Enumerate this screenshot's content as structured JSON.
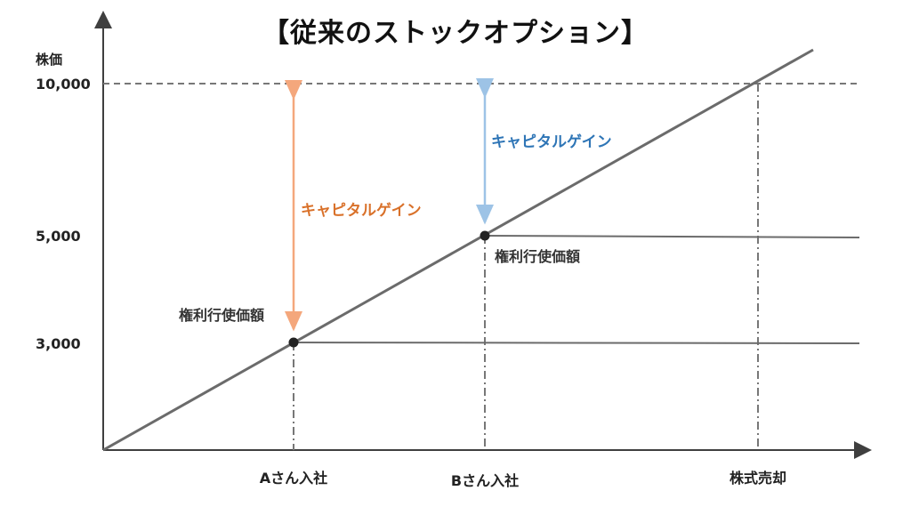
{
  "title": "【従来のストックオプション】",
  "y_axis": {
    "label": "株価",
    "ticks": [
      {
        "value": 10000,
        "label": "10,000"
      },
      {
        "value": 5000,
        "label": "5,000"
      },
      {
        "value": 3000,
        "label": "3,000"
      }
    ]
  },
  "x_axis": {
    "ticks": [
      {
        "key": "a",
        "label": "Aさん入社"
      },
      {
        "key": "b",
        "label": "Bさん入社"
      },
      {
        "key": "sell",
        "label": "株式売却"
      }
    ]
  },
  "annotations": {
    "exercise_price_a": "権利行使価額",
    "exercise_price_b": "権利行使価額",
    "gain_a": "キャピタルゲイン",
    "gain_b": "キャピタルゲイン"
  },
  "colors": {
    "line": "#6b6b6b",
    "axis": "#3f3f3f",
    "gain_a": "#f4a77c",
    "gain_a_text": "#d9712a",
    "gain_b": "#9dc3e6",
    "gain_b_text": "#2e75b6",
    "point": "#222222"
  }
}
